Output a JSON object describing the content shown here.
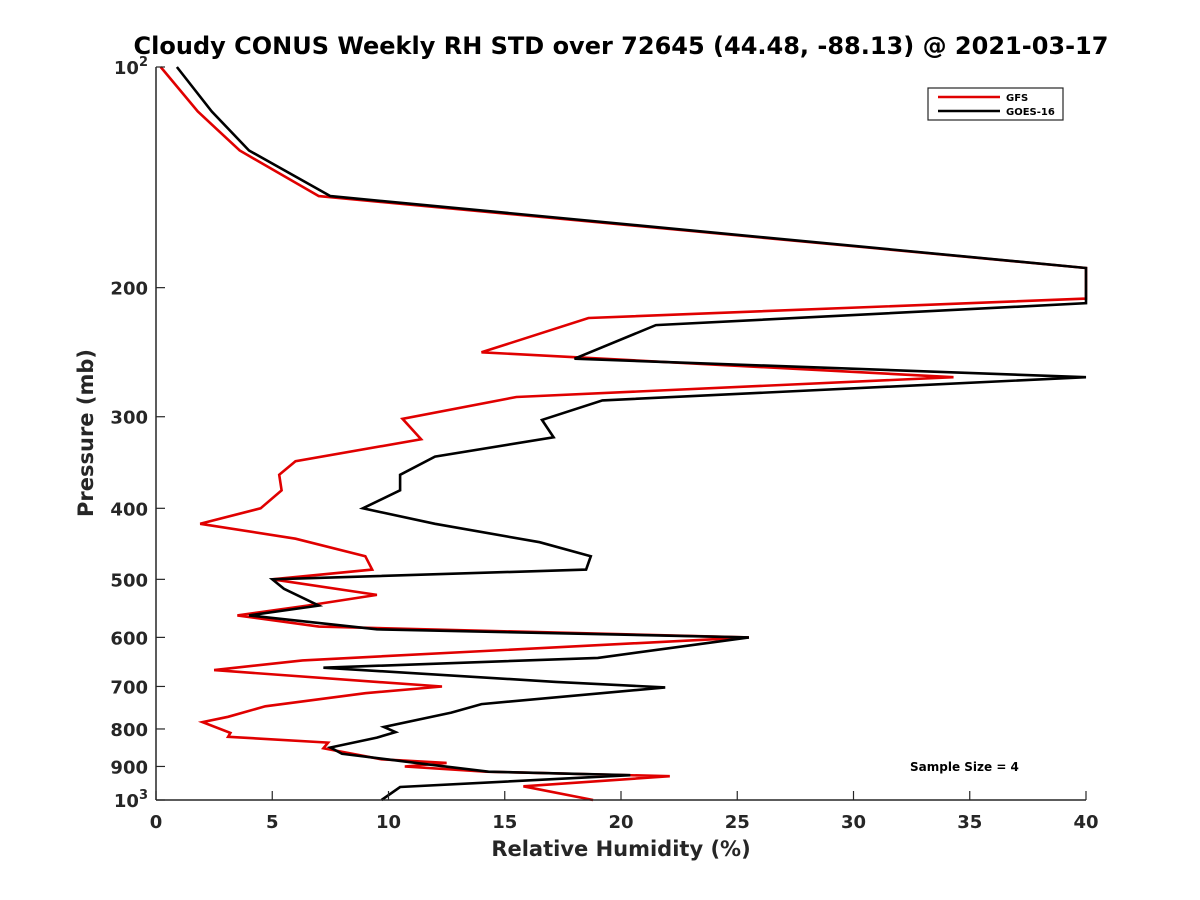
{
  "chart_data": {
    "type": "line",
    "title": "Cloudy CONUS Weekly RH STD over 72645 (44.48, -88.13) @ 2021-03-17",
    "xlabel": "Relative Humidity (%)",
    "ylabel": "Pressure (mb)",
    "xlim": [
      0,
      40
    ],
    "ylim": [
      100,
      1000
    ],
    "y_scale": "log",
    "y_reversed": true,
    "grid": false,
    "legend_position": "top-right",
    "x_ticks": [
      0,
      5,
      10,
      15,
      20,
      25,
      30,
      35,
      40
    ],
    "x_tick_labels": [
      "0",
      "5",
      "10",
      "15",
      "20",
      "25",
      "30",
      "35",
      "40"
    ],
    "y_ticks": [
      100,
      200,
      300,
      400,
      500,
      600,
      700,
      800,
      900,
      1000
    ],
    "y_tick_labels": [
      {
        "base": "10",
        "exp": "2"
      },
      {
        "base": "200",
        "exp": ""
      },
      {
        "base": "300",
        "exp": ""
      },
      {
        "base": "400",
        "exp": ""
      },
      {
        "base": "500",
        "exp": ""
      },
      {
        "base": "600",
        "exp": ""
      },
      {
        "base": "700",
        "exp": ""
      },
      {
        "base": "800",
        "exp": ""
      },
      {
        "base": "900",
        "exp": ""
      },
      {
        "base": "10",
        "exp": "3"
      }
    ],
    "annotation": "Sample Size = 4",
    "series": [
      {
        "name": "GFS",
        "color": "#e00000",
        "points": [
          [
            0.2,
            100
          ],
          [
            1.8,
            115
          ],
          [
            3.6,
            130
          ],
          [
            7.0,
            150
          ],
          [
            40.0,
            188
          ],
          [
            40.0,
            207
          ],
          [
            18.6,
            220
          ],
          [
            14.0,
            245
          ],
          [
            34.3,
            265
          ],
          [
            15.5,
            282
          ],
          [
            10.6,
            302
          ],
          [
            11.4,
            322
          ],
          [
            6.0,
            345
          ],
          [
            5.3,
            360
          ],
          [
            5.4,
            378
          ],
          [
            4.5,
            400
          ],
          [
            1.9,
            420
          ],
          [
            6.0,
            440
          ],
          [
            9.0,
            465
          ],
          [
            9.3,
            485
          ],
          [
            5.0,
            500
          ],
          [
            9.5,
            525
          ],
          [
            6.5,
            543
          ],
          [
            3.5,
            560
          ],
          [
            7.0,
            580
          ],
          [
            25.5,
            600
          ],
          [
            6.3,
            645
          ],
          [
            2.5,
            665
          ],
          [
            9.5,
            690
          ],
          [
            12.3,
            700
          ],
          [
            9.0,
            715
          ],
          [
            4.7,
            745
          ],
          [
            3.1,
            770
          ],
          [
            2.0,
            783
          ],
          [
            3.2,
            810
          ],
          [
            3.1,
            820
          ],
          [
            7.4,
            835
          ],
          [
            7.2,
            850
          ],
          [
            9.7,
            880
          ],
          [
            12.5,
            890
          ],
          [
            10.7,
            900
          ],
          [
            14.2,
            915
          ],
          [
            22.1,
            928
          ],
          [
            15.8,
            958
          ],
          [
            18.8,
            1000
          ]
        ]
      },
      {
        "name": "GOES-16",
        "color": "#000000",
        "points": [
          [
            0.9,
            100
          ],
          [
            2.4,
            115
          ],
          [
            4.0,
            130
          ],
          [
            7.5,
            150
          ],
          [
            40.0,
            188
          ],
          [
            40.0,
            210
          ],
          [
            21.5,
            225
          ],
          [
            18.0,
            250
          ],
          [
            40.0,
            265
          ],
          [
            19.2,
            285
          ],
          [
            16.6,
            303
          ],
          [
            17.1,
            320
          ],
          [
            12.0,
            340
          ],
          [
            10.5,
            360
          ],
          [
            10.5,
            378
          ],
          [
            8.9,
            400
          ],
          [
            12.0,
            420
          ],
          [
            16.5,
            445
          ],
          [
            18.7,
            465
          ],
          [
            18.5,
            485
          ],
          [
            5.0,
            500
          ],
          [
            5.5,
            515
          ],
          [
            7.0,
            543
          ],
          [
            4.0,
            560
          ],
          [
            9.5,
            585
          ],
          [
            25.5,
            600
          ],
          [
            19.0,
            640
          ],
          [
            7.2,
            660
          ],
          [
            17.2,
            690
          ],
          [
            21.9,
            702
          ],
          [
            14.0,
            740
          ],
          [
            12.7,
            760
          ],
          [
            9.8,
            795
          ],
          [
            10.3,
            808
          ],
          [
            9.5,
            822
          ],
          [
            7.5,
            848
          ],
          [
            8.0,
            865
          ],
          [
            11.8,
            895
          ],
          [
            14.3,
            915
          ],
          [
            20.4,
            925
          ],
          [
            10.5,
            960
          ],
          [
            9.7,
            1000
          ]
        ]
      }
    ]
  }
}
